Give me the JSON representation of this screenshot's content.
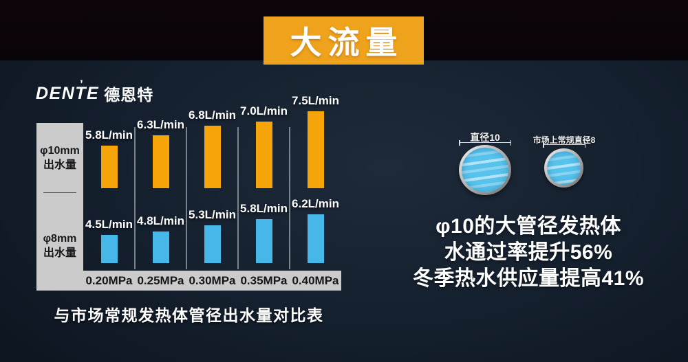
{
  "banner": {
    "title": "大流量",
    "bg_color": "#EFA21B"
  },
  "logo": {
    "latin": "DENTE",
    "accent": "’",
    "cjk": "德恩特"
  },
  "chart_data": {
    "type": "bar",
    "title": "与市场常规发热体管径出水量对比表",
    "categories": [
      "0.20MPa",
      "0.25MPa",
      "0.30MPa",
      "0.35MPa",
      "0.40MPa"
    ],
    "unit": "L/min",
    "grid": false,
    "legend_position": "left-axis-panel",
    "series": [
      {
        "name": "φ10mm出水量",
        "axis_label": [
          "φ10mm",
          "出水量"
        ],
        "color": "#F5A40A",
        "values": [
          5.8,
          6.3,
          6.8,
          7.0,
          7.5
        ],
        "labels": [
          "5.8L/min",
          "6.3L/min",
          "6.8L/min",
          "7.0L/min",
          "7.5L/min"
        ]
      },
      {
        "name": "φ8mm出水量",
        "axis_label": [
          "φ8mm",
          "出水量"
        ],
        "color": "#47B7E9",
        "values": [
          4.5,
          4.8,
          5.3,
          5.8,
          6.2
        ],
        "labels": [
          "4.5L/min",
          "4.8L/min",
          "5.3L/min",
          "5.8L/min",
          "6.2L/min"
        ]
      }
    ]
  },
  "caption": "与市场常规发热体管径出水量对比表",
  "pipes": {
    "large": {
      "label": "直径10"
    },
    "small": {
      "label": "市场上常规直径8"
    }
  },
  "benefits": {
    "lines": [
      "φ10的大管径发热体",
      "水通过率提升56%",
      "冬季热水供应量提高41%"
    ]
  },
  "colors": {
    "bar_orange": "#F5A40A",
    "bar_blue": "#47B7E9",
    "panel_gray": "#CBCBCB",
    "background_navy": "#15202E",
    "top_strip_black": "#0B050B"
  }
}
